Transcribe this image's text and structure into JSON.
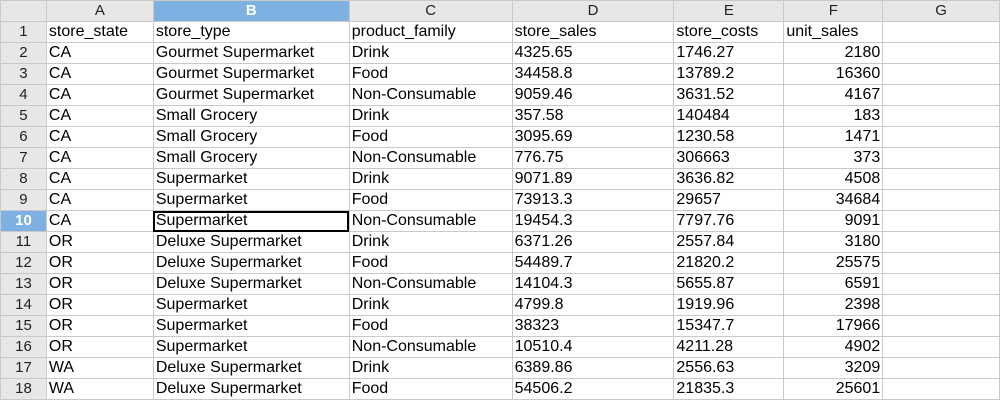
{
  "columns": [
    "A",
    "B",
    "C",
    "D",
    "E",
    "F",
    "G"
  ],
  "selected_column": "B",
  "selected_row": "10",
  "headers": [
    "store_state",
    "store_type",
    "product_family",
    "store_sales",
    "store_costs",
    "unit_sales"
  ],
  "rows": [
    {
      "num": "2",
      "cells": [
        "CA",
        "Gourmet Supermarket",
        "Drink",
        "4325.65",
        "1746.27",
        "2180"
      ]
    },
    {
      "num": "3",
      "cells": [
        "CA",
        "Gourmet Supermarket",
        "Food",
        "34458.8",
        "13789.2",
        "16360"
      ]
    },
    {
      "num": "4",
      "cells": [
        "CA",
        "Gourmet Supermarket",
        "Non-Consumable",
        "9059.46",
        "3631.52",
        "4167"
      ]
    },
    {
      "num": "5",
      "cells": [
        "CA",
        "Small Grocery",
        "Drink",
        "357.58",
        "140484",
        "183"
      ]
    },
    {
      "num": "6",
      "cells": [
        "CA",
        "Small Grocery",
        "Food",
        "3095.69",
        "1230.58",
        "1471"
      ]
    },
    {
      "num": "7",
      "cells": [
        "CA",
        "Small Grocery",
        "Non-Consumable",
        "776.75",
        "306663",
        "373"
      ]
    },
    {
      "num": "8",
      "cells": [
        "CA",
        "Supermarket",
        "Drink",
        "9071.89",
        "3636.82",
        "4508"
      ]
    },
    {
      "num": "9",
      "cells": [
        "CA",
        "Supermarket",
        "Food",
        "73913.3",
        "29657",
        "34684"
      ]
    },
    {
      "num": "10",
      "cells": [
        "CA",
        "Supermarket",
        "Non-Consumable",
        "19454.3",
        "7797.76",
        "9091"
      ]
    },
    {
      "num": "11",
      "cells": [
        "OR",
        "Deluxe Supermarket",
        "Drink",
        "6371.26",
        "2557.84",
        "3180"
      ]
    },
    {
      "num": "12",
      "cells": [
        "OR",
        "Deluxe Supermarket",
        "Food",
        "54489.7",
        "21820.2",
        "25575"
      ]
    },
    {
      "num": "13",
      "cells": [
        "OR",
        "Deluxe Supermarket",
        "Non-Consumable",
        "14104.3",
        "5655.87",
        "6591"
      ]
    },
    {
      "num": "14",
      "cells": [
        "OR",
        "Supermarket",
        "Drink",
        "4799.8",
        "1919.96",
        "2398"
      ]
    },
    {
      "num": "15",
      "cells": [
        "OR",
        "Supermarket",
        "Food",
        "38323",
        "15347.7",
        "17966"
      ]
    },
    {
      "num": "16",
      "cells": [
        "OR",
        "Supermarket",
        "Non-Consumable",
        "10510.4",
        "4211.28",
        "4902"
      ]
    },
    {
      "num": "17",
      "cells": [
        "WA",
        "Deluxe Supermarket",
        "Drink",
        "6389.86",
        "2556.63",
        "3209"
      ]
    },
    {
      "num": "18",
      "cells": [
        "WA",
        "Deluxe Supermarket",
        "Food",
        "54506.2",
        "21835.3",
        "25601"
      ]
    }
  ]
}
